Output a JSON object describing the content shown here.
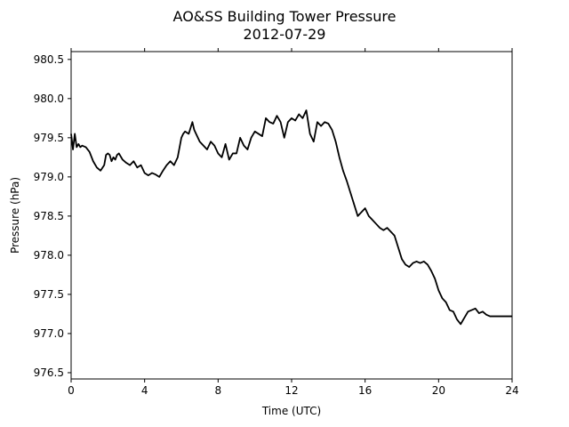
{
  "chart_data": {
    "type": "line",
    "title": "AO&SS Building Tower Pressure",
    "subtitle": "2012-07-29",
    "xlabel": "Time (UTC)",
    "ylabel": "Pressure (hPa)",
    "xlim": [
      0,
      24
    ],
    "ylim": [
      976.42,
      980.6
    ],
    "xticks": [
      0,
      4,
      8,
      12,
      16,
      20,
      24
    ],
    "yticks": [
      976.5,
      977.0,
      977.5,
      978.0,
      978.5,
      979.0,
      979.5,
      980.0,
      980.5
    ],
    "ytick_labels": [
      "976.5",
      "977.0",
      "977.5",
      "978.0",
      "978.5",
      "979.0",
      "979.5",
      "980.0",
      "980.5"
    ],
    "grid": false,
    "line_color": "#000000",
    "series": [
      {
        "x": [
          0,
          0.1,
          0.2,
          0.3,
          0.4,
          0.5,
          0.6,
          0.8,
          1.0,
          1.2,
          1.4,
          1.6,
          1.8,
          1.9,
          2.0,
          2.1,
          2.2,
          2.3,
          2.4,
          2.5,
          2.6,
          2.8,
          3.0,
          3.2,
          3.4,
          3.6,
          3.8,
          4.0,
          4.2,
          4.4,
          4.6,
          4.8,
          5.0,
          5.2,
          5.4,
          5.6,
          5.8,
          6.0,
          6.1,
          6.2,
          6.4,
          6.6,
          6.7,
          6.8,
          7.0,
          7.2,
          7.4,
          7.6,
          7.8,
          8.0,
          8.2,
          8.4,
          8.6,
          8.8,
          9.0,
          9.2,
          9.4,
          9.6,
          9.8,
          10.0,
          10.2,
          10.4,
          10.6,
          10.8,
          11.0,
          11.2,
          11.4,
          11.6,
          11.8,
          12.0,
          12.2,
          12.4,
          12.6,
          12.8,
          13.0,
          13.2,
          13.4,
          13.6,
          13.8,
          14.0,
          14.2,
          14.4,
          14.6,
          14.8,
          15.0,
          15.2,
          15.4,
          15.6,
          15.8,
          16.0,
          16.2,
          16.4,
          16.6,
          16.8,
          17.0,
          17.2,
          17.4,
          17.6,
          17.8,
          18.0,
          18.2,
          18.4,
          18.6,
          18.8,
          19.0,
          19.2,
          19.4,
          19.6,
          19.8,
          20.0,
          20.2,
          20.4,
          20.6,
          20.8,
          21.0,
          21.2,
          21.4,
          21.6,
          21.8,
          22.0,
          22.2,
          22.4,
          22.6,
          22.8,
          23.0,
          23.2,
          23.4,
          23.6,
          23.8,
          24.0
        ],
        "y": [
          979.55,
          979.35,
          979.55,
          979.38,
          979.42,
          979.38,
          979.4,
          979.38,
          979.32,
          979.2,
          979.12,
          979.08,
          979.15,
          979.28,
          979.3,
          979.28,
          979.2,
          979.25,
          979.22,
          979.28,
          979.3,
          979.22,
          979.18,
          979.15,
          979.2,
          979.12,
          979.15,
          979.05,
          979.02,
          979.05,
          979.03,
          979.0,
          979.08,
          979.15,
          979.2,
          979.15,
          979.25,
          979.5,
          979.55,
          979.58,
          979.55,
          979.7,
          979.6,
          979.55,
          979.45,
          979.4,
          979.35,
          979.45,
          979.4,
          979.3,
          979.25,
          979.42,
          979.22,
          979.3,
          979.3,
          979.5,
          979.4,
          979.35,
          979.5,
          979.58,
          979.55,
          979.52,
          979.75,
          979.7,
          979.68,
          979.78,
          979.7,
          979.5,
          979.7,
          979.75,
          979.72,
          979.8,
          979.75,
          979.85,
          979.55,
          979.45,
          979.7,
          979.65,
          979.7,
          979.68,
          979.6,
          979.45,
          979.25,
          979.08,
          978.95,
          978.8,
          978.65,
          978.5,
          978.55,
          978.6,
          978.5,
          978.45,
          978.4,
          978.35,
          978.32,
          978.35,
          978.3,
          978.25,
          978.1,
          977.95,
          977.88,
          977.85,
          977.9,
          977.92,
          977.9,
          977.92,
          977.88,
          977.8,
          977.7,
          977.55,
          977.45,
          977.4,
          977.3,
          977.28,
          977.18,
          977.12,
          977.2,
          977.28,
          977.3,
          977.32,
          977.26,
          977.28,
          977.24,
          977.22,
          977.22,
          977.22,
          977.22,
          977.22,
          977.22,
          977.22
        ]
      }
    ]
  }
}
